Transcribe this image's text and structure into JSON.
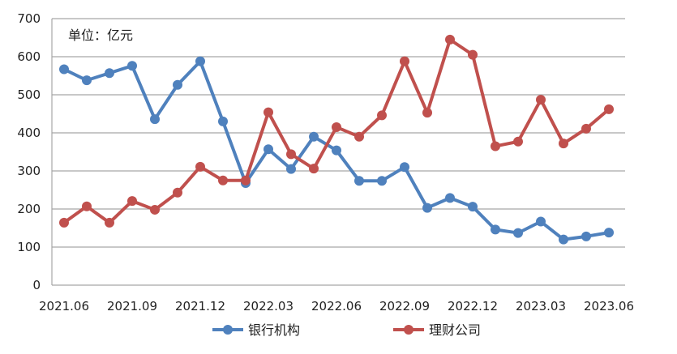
{
  "chart_data": {
    "type": "line",
    "unit_label": "单位：亿元",
    "ylim": [
      0,
      700
    ],
    "yticks": [
      0,
      100,
      200,
      300,
      400,
      500,
      600,
      700
    ],
    "x_tick_labels": [
      "2021.06",
      "2021.09",
      "2021.12",
      "2022.03",
      "2022.06",
      "2022.09",
      "2022.12",
      "2023.03",
      "2023.06"
    ],
    "x": [
      "2021.06",
      "2021.07",
      "2021.08",
      "2021.09",
      "2021.10",
      "2021.11",
      "2021.12",
      "2022.01",
      "2022.02",
      "2022.03",
      "2022.04",
      "2022.05",
      "2022.06",
      "2022.07",
      "2022.08",
      "2022.09",
      "2022.10",
      "2022.11",
      "2022.12",
      "2023.01",
      "2023.02",
      "2023.03",
      "2023.04",
      "2023.05",
      "2023.06"
    ],
    "grid": true,
    "legend_position": "bottom",
    "series": [
      {
        "name": "银行机构",
        "color": "#4f81bd",
        "values": [
          567,
          538,
          557,
          576,
          436,
          526,
          588,
          430,
          268,
          357,
          305,
          390,
          354,
          274,
          274,
          310,
          203,
          229,
          206,
          146,
          137,
          167,
          120,
          128,
          138
        ]
      },
      {
        "name": "理财公司",
        "color": "#c0504d",
        "values": [
          164,
          207,
          164,
          221,
          198,
          243,
          311,
          275,
          275,
          454,
          344,
          306,
          415,
          390,
          446,
          588,
          453,
          645,
          605,
          365,
          377,
          487,
          372,
          411,
          462
        ]
      }
    ]
  }
}
